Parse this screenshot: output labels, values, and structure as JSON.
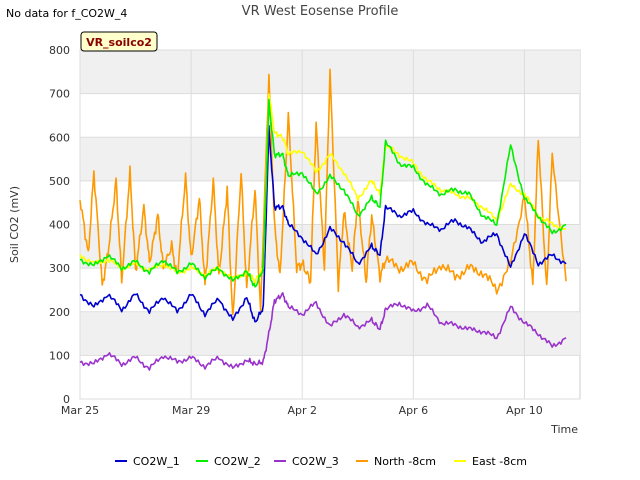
{
  "note": "No data for f_CO2W_4",
  "chart_data": {
    "type": "line",
    "title": "VR West Eosense Profile",
    "tag": "VR_soilco2",
    "xlabel": "Time",
    "ylabel": "Soil CO2 (mV)",
    "ylim": [
      0,
      800
    ],
    "y_ticks": [
      0,
      100,
      200,
      300,
      400,
      500,
      600,
      700,
      800
    ],
    "x_ticks": [
      {
        "label": "Mar 25",
        "day": 0
      },
      {
        "label": "Mar 29",
        "day": 4
      },
      {
        "label": "Apr 2",
        "day": 8
      },
      {
        "label": "Apr 6",
        "day": 12
      },
      {
        "label": "Apr 10",
        "day": 16
      }
    ],
    "xlim_day": [
      0,
      18
    ],
    "grid": true,
    "legend_position": "bottom",
    "colors": {
      "CO2W_1": "#0000cc",
      "CO2W_2": "#00ee00",
      "CO2W_3": "#9933cc",
      "North -8cm": "#ff9900",
      "East -8cm": "#ffff00"
    },
    "series": [
      {
        "name": "CO2W_1",
        "x": [
          0,
          0.5,
          1,
          1.5,
          2,
          2.5,
          3,
          3.5,
          4,
          4.5,
          5,
          5.5,
          6,
          6.3,
          6.6,
          6.8,
          7,
          7.3,
          7.5,
          8,
          8.5,
          9,
          9.5,
          10,
          10.5,
          10.8,
          11,
          11.5,
          12,
          12.5,
          13,
          13.5,
          14,
          14.5,
          15,
          15.5,
          16,
          16.5,
          17,
          17.5
        ],
        "y": [
          240,
          210,
          240,
          205,
          240,
          200,
          235,
          200,
          240,
          195,
          230,
          180,
          235,
          175,
          210,
          620,
          440,
          440,
          400,
          370,
          330,
          390,
          360,
          310,
          350,
          330,
          440,
          420,
          430,
          400,
          390,
          410,
          390,
          360,
          380,
          300,
          380,
          310,
          330,
          310
        ]
      },
      {
        "name": "CO2W_2",
        "x": [
          0,
          0.5,
          1,
          1.5,
          2,
          2.5,
          3,
          3.5,
          4,
          4.5,
          5,
          5.5,
          6,
          6.3,
          6.6,
          6.8,
          7,
          7.3,
          7.5,
          8,
          8.5,
          9,
          9.5,
          10,
          10.5,
          10.8,
          11,
          11.5,
          12,
          12.5,
          13,
          13.5,
          14,
          14.5,
          15,
          15.5,
          16,
          16.5,
          17,
          17.5
        ],
        "y": [
          320,
          305,
          330,
          300,
          315,
          290,
          320,
          290,
          310,
          280,
          300,
          270,
          295,
          255,
          300,
          680,
          560,
          560,
          510,
          520,
          470,
          510,
          480,
          420,
          460,
          440,
          590,
          540,
          530,
          490,
          470,
          480,
          470,
          420,
          400,
          580,
          460,
          420,
          380,
          400
        ]
      },
      {
        "name": "CO2W_3",
        "x": [
          0,
          0.5,
          1,
          1.5,
          2,
          2.5,
          3,
          3.5,
          4,
          4.5,
          5,
          5.5,
          6,
          6.3,
          6.6,
          6.8,
          7,
          7.3,
          7.5,
          8,
          8.5,
          9,
          9.5,
          10,
          10.5,
          10.8,
          11,
          11.5,
          12,
          12.5,
          13,
          13.5,
          14,
          14.5,
          15,
          15.5,
          16,
          16.5,
          17,
          17.5
        ],
        "y": [
          85,
          80,
          105,
          80,
          95,
          70,
          100,
          85,
          95,
          75,
          95,
          70,
          90,
          80,
          85,
          150,
          225,
          240,
          210,
          195,
          220,
          165,
          195,
          165,
          180,
          160,
          205,
          220,
          200,
          215,
          175,
          170,
          160,
          155,
          140,
          210,
          175,
          150,
          120,
          140
        ]
      },
      {
        "name": "North -8cm",
        "x": [
          0,
          0.3,
          0.5,
          0.8,
          1,
          1.3,
          1.5,
          1.8,
          2,
          2.3,
          2.5,
          2.8,
          3,
          3.3,
          3.5,
          3.8,
          4,
          4.3,
          4.5,
          4.8,
          5,
          5.3,
          5.5,
          5.8,
          6,
          6.3,
          6.5,
          6.8,
          7,
          7.2,
          7.5,
          7.8,
          8,
          8.3,
          8.5,
          8.8,
          9,
          9.3,
          9.5,
          9.8,
          10,
          10.3,
          10.5,
          10.8,
          11,
          11.5,
          12,
          12.5,
          13,
          13.5,
          14,
          14.5,
          15,
          15.5,
          16,
          16.3,
          16.5,
          16.8,
          17,
          17.5
        ],
        "y": [
          460,
          330,
          520,
          260,
          330,
          500,
          270,
          520,
          290,
          440,
          310,
          420,
          300,
          350,
          280,
          510,
          320,
          460,
          260,
          500,
          280,
          480,
          180,
          520,
          250,
          480,
          200,
          740,
          400,
          280,
          650,
          300,
          310,
          270,
          630,
          300,
          750,
          260,
          430,
          300,
          460,
          270,
          420,
          280,
          320,
          300,
          310,
          270,
          310,
          280,
          300,
          290,
          250,
          310,
          470,
          260,
          600,
          250,
          560,
          270
        ]
      },
      {
        "name": "East -8cm",
        "x": [
          0,
          0.5,
          1,
          1.5,
          2,
          2.5,
          3,
          3.5,
          4,
          4.5,
          5,
          5.5,
          6,
          6.3,
          6.6,
          6.8,
          7,
          7.3,
          7.5,
          8,
          8.5,
          9,
          9.5,
          10,
          10.5,
          10.8,
          11,
          11.5,
          12,
          12.5,
          13,
          13.5,
          14,
          14.5,
          15,
          15.5,
          16,
          16.5,
          17,
          17.5
        ],
        "y": [
          330,
          310,
          320,
          300,
          310,
          295,
          310,
          290,
          300,
          285,
          300,
          275,
          290,
          270,
          300,
          700,
          610,
          600,
          560,
          570,
          520,
          560,
          520,
          460,
          500,
          470,
          580,
          560,
          540,
          500,
          480,
          470,
          460,
          440,
          410,
          490,
          470,
          420,
          400,
          390
        ]
      }
    ]
  }
}
